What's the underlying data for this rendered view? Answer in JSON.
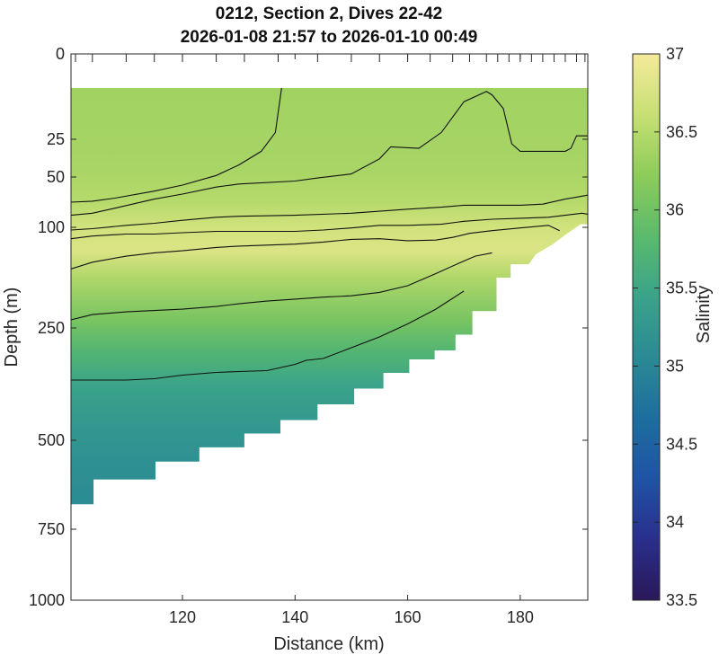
{
  "chart_data": {
    "type": "heatmap",
    "title": "0212, Section 2, Dives 22-42",
    "subtitle": "2026-01-08 21:57 to 2026-01-10 00:49",
    "xlabel": "Distance (km)",
    "ylabel": "Depth (m)",
    "xlim": [
      100.2,
      192
    ],
    "ylim_depth": [
      0,
      1000
    ],
    "depth_scale": "stretched (upper ocean expanded)",
    "x_ticks": [
      "120",
      "140",
      "160",
      "180"
    ],
    "x_tick_values": [
      120,
      140,
      160,
      180
    ],
    "y_ticks": [
      "0",
      "25",
      "50",
      "100",
      "250",
      "500",
      "750",
      "1000"
    ],
    "y_tick_values": [
      0,
      25,
      50,
      100,
      250,
      500,
      750,
      1000
    ],
    "colorbar": {
      "label": "Salinity",
      "min": 33.5,
      "max": 37,
      "ticks": [
        "33.5",
        "34",
        "34.5",
        "35",
        "35.5",
        "36",
        "36.5",
        "37"
      ],
      "tick_values": [
        33.5,
        34,
        34.5,
        35,
        35.5,
        36,
        36.5,
        37
      ]
    },
    "data_top_depth": 10,
    "bottom_boundary": [
      {
        "x": 100.2,
        "depth": 680
      },
      {
        "x": 104.2,
        "depth": 680
      },
      {
        "x": 104.2,
        "depth": 610
      },
      {
        "x": 115.2,
        "depth": 610
      },
      {
        "x": 115.2,
        "depth": 560
      },
      {
        "x": 123.0,
        "depth": 560
      },
      {
        "x": 123.0,
        "depth": 520
      },
      {
        "x": 131.0,
        "depth": 520
      },
      {
        "x": 131.0,
        "depth": 485
      },
      {
        "x": 137.4,
        "depth": 485
      },
      {
        "x": 137.4,
        "depth": 455
      },
      {
        "x": 144.0,
        "depth": 455
      },
      {
        "x": 144.0,
        "depth": 420
      },
      {
        "x": 150.5,
        "depth": 420
      },
      {
        "x": 150.5,
        "depth": 385
      },
      {
        "x": 155.7,
        "depth": 385
      },
      {
        "x": 155.7,
        "depth": 350
      },
      {
        "x": 160.3,
        "depth": 350
      },
      {
        "x": 160.3,
        "depth": 320
      },
      {
        "x": 164.8,
        "depth": 320
      },
      {
        "x": 164.8,
        "depth": 300
      },
      {
        "x": 168.5,
        "depth": 300
      },
      {
        "x": 168.5,
        "depth": 265
      },
      {
        "x": 171.5,
        "depth": 265
      },
      {
        "x": 171.5,
        "depth": 225
      },
      {
        "x": 175.8,
        "depth": 225
      },
      {
        "x": 175.8,
        "depth": 175
      },
      {
        "x": 178.3,
        "depth": 175
      },
      {
        "x": 178.3,
        "depth": 155
      },
      {
        "x": 181.5,
        "depth": 155
      },
      {
        "x": 182.8,
        "depth": 140
      },
      {
        "x": 185.8,
        "depth": 125
      },
      {
        "x": 188.2,
        "depth": 110
      },
      {
        "x": 190.7,
        "depth": 97
      },
      {
        "x": 192.0,
        "depth": 97
      }
    ],
    "salinity_profile": [
      {
        "depth": 10,
        "salinity": 36.35
      },
      {
        "depth": 45,
        "salinity": 36.4
      },
      {
        "depth": 75,
        "salinity": 36.5
      },
      {
        "depth": 100,
        "salinity": 36.7
      },
      {
        "depth": 135,
        "salinity": 36.78
      },
      {
        "depth": 175,
        "salinity": 36.45
      },
      {
        "depth": 240,
        "salinity": 36.05
      },
      {
        "depth": 300,
        "salinity": 35.75
      },
      {
        "depth": 380,
        "salinity": 35.45
      },
      {
        "depth": 450,
        "salinity": 35.3
      },
      {
        "depth": 560,
        "salinity": 35.15
      },
      {
        "depth": 700,
        "salinity": 35.05
      }
    ],
    "contour_lines": [
      [
        {
          "x": 137.6,
          "depth": 10
        },
        {
          "x": 136.5,
          "depth": 23
        },
        {
          "x": 134.0,
          "depth": 33
        },
        {
          "x": 130.0,
          "depth": 42
        },
        {
          "x": 126.0,
          "depth": 49
        },
        {
          "x": 120.0,
          "depth": 58
        },
        {
          "x": 115.0,
          "depth": 64
        },
        {
          "x": 108.0,
          "depth": 71
        },
        {
          "x": 104.0,
          "depth": 74
        },
        {
          "x": 100.2,
          "depth": 75
        }
      ],
      [
        {
          "x": 100.2,
          "depth": 88
        },
        {
          "x": 104.0,
          "depth": 86
        },
        {
          "x": 108.0,
          "depth": 81
        },
        {
          "x": 115.0,
          "depth": 72
        },
        {
          "x": 120.0,
          "depth": 67
        },
        {
          "x": 126.0,
          "depth": 60
        },
        {
          "x": 130.0,
          "depth": 57
        },
        {
          "x": 140.0,
          "depth": 54
        },
        {
          "x": 144.0,
          "depth": 51
        },
        {
          "x": 150.0,
          "depth": 48
        },
        {
          "x": 155.0,
          "depth": 38
        },
        {
          "x": 157.0,
          "depth": 30
        },
        {
          "x": 162.0,
          "depth": 31
        },
        {
          "x": 166.0,
          "depth": 23
        },
        {
          "x": 170.0,
          "depth": 14
        },
        {
          "x": 174.0,
          "depth": 11
        },
        {
          "x": 175.0,
          "depth": 12
        },
        {
          "x": 177.0,
          "depth": 16
        },
        {
          "x": 178.5,
          "depth": 28
        },
        {
          "x": 180.0,
          "depth": 33
        },
        {
          "x": 184.0,
          "depth": 33
        },
        {
          "x": 188.0,
          "depth": 33
        },
        {
          "x": 189.0,
          "depth": 31
        },
        {
          "x": 190.0,
          "depth": 24
        },
        {
          "x": 192.0,
          "depth": 24
        }
      ],
      [
        {
          "x": 100.2,
          "depth": 104
        },
        {
          "x": 104.0,
          "depth": 102
        },
        {
          "x": 110.0,
          "depth": 98
        },
        {
          "x": 115.0,
          "depth": 96
        },
        {
          "x": 120.0,
          "depth": 93
        },
        {
          "x": 126.0,
          "depth": 90
        },
        {
          "x": 130.0,
          "depth": 89
        },
        {
          "x": 140.0,
          "depth": 88
        },
        {
          "x": 150.0,
          "depth": 86
        },
        {
          "x": 155.0,
          "depth": 84
        },
        {
          "x": 160.0,
          "depth": 82
        },
        {
          "x": 166.0,
          "depth": 80
        },
        {
          "x": 170.0,
          "depth": 78
        },
        {
          "x": 175.0,
          "depth": 78
        },
        {
          "x": 180.0,
          "depth": 78
        },
        {
          "x": 184.0,
          "depth": 77
        },
        {
          "x": 188.0,
          "depth": 72
        },
        {
          "x": 192.0,
          "depth": 68
        }
      ],
      [
        {
          "x": 100.2,
          "depth": 117
        },
        {
          "x": 104.0,
          "depth": 113
        },
        {
          "x": 110.0,
          "depth": 110
        },
        {
          "x": 115.0,
          "depth": 110
        },
        {
          "x": 120.0,
          "depth": 108
        },
        {
          "x": 126.0,
          "depth": 106
        },
        {
          "x": 130.0,
          "depth": 106
        },
        {
          "x": 140.0,
          "depth": 106
        },
        {
          "x": 145.0,
          "depth": 104
        },
        {
          "x": 150.0,
          "depth": 101
        },
        {
          "x": 155.0,
          "depth": 98
        },
        {
          "x": 160.0,
          "depth": 98
        },
        {
          "x": 166.0,
          "depth": 97
        },
        {
          "x": 170.0,
          "depth": 94
        },
        {
          "x": 175.0,
          "depth": 92
        },
        {
          "x": 180.0,
          "depth": 91
        },
        {
          "x": 185.0,
          "depth": 90
        },
        {
          "x": 188.0,
          "depth": 88
        },
        {
          "x": 191.0,
          "depth": 86
        },
        {
          "x": 192.0,
          "depth": 87
        }
      ],
      [
        {
          "x": 100.2,
          "depth": 162
        },
        {
          "x": 104.0,
          "depth": 152
        },
        {
          "x": 110.0,
          "depth": 143
        },
        {
          "x": 115.0,
          "depth": 138
        },
        {
          "x": 120.0,
          "depth": 135
        },
        {
          "x": 126.0,
          "depth": 130
        },
        {
          "x": 130.0,
          "depth": 128
        },
        {
          "x": 140.0,
          "depth": 125
        },
        {
          "x": 145.0,
          "depth": 122
        },
        {
          "x": 150.0,
          "depth": 118
        },
        {
          "x": 155.0,
          "depth": 117
        },
        {
          "x": 160.0,
          "depth": 120
        },
        {
          "x": 165.0,
          "depth": 119
        },
        {
          "x": 168.0,
          "depth": 115
        },
        {
          "x": 171.0,
          "depth": 109
        },
        {
          "x": 175.0,
          "depth": 105
        },
        {
          "x": 180.0,
          "depth": 101
        },
        {
          "x": 185.0,
          "depth": 98
        },
        {
          "x": 187.0,
          "depth": 105
        }
      ],
      [
        {
          "x": 100.2,
          "depth": 238
        },
        {
          "x": 104.0,
          "depth": 230
        },
        {
          "x": 110.0,
          "depth": 226
        },
        {
          "x": 115.0,
          "depth": 224
        },
        {
          "x": 120.0,
          "depth": 222
        },
        {
          "x": 126.0,
          "depth": 218
        },
        {
          "x": 130.0,
          "depth": 214
        },
        {
          "x": 135.0,
          "depth": 210
        },
        {
          "x": 140.0,
          "depth": 207
        },
        {
          "x": 145.0,
          "depth": 204
        },
        {
          "x": 150.0,
          "depth": 202
        },
        {
          "x": 155.0,
          "depth": 197
        },
        {
          "x": 160.0,
          "depth": 187
        },
        {
          "x": 165.0,
          "depth": 169
        },
        {
          "x": 169.0,
          "depth": 154
        },
        {
          "x": 172.0,
          "depth": 143
        },
        {
          "x": 175.0,
          "depth": 138
        }
      ],
      [
        {
          "x": 100.2,
          "depth": 366
        },
        {
          "x": 104.0,
          "depth": 366
        },
        {
          "x": 110.0,
          "depth": 366
        },
        {
          "x": 115.0,
          "depth": 363
        },
        {
          "x": 120.0,
          "depth": 355
        },
        {
          "x": 126.0,
          "depth": 349
        },
        {
          "x": 130.0,
          "depth": 347
        },
        {
          "x": 135.0,
          "depth": 345
        },
        {
          "x": 140.0,
          "depth": 331
        },
        {
          "x": 142.0,
          "depth": 322
        },
        {
          "x": 145.0,
          "depth": 318
        },
        {
          "x": 150.0,
          "depth": 294
        },
        {
          "x": 155.0,
          "depth": 270
        },
        {
          "x": 160.0,
          "depth": 244
        },
        {
          "x": 165.0,
          "depth": 222
        },
        {
          "x": 170.0,
          "depth": 195
        }
      ]
    ]
  },
  "colors": {
    "cmap": [
      "#2a1859",
      "#2a2f8c",
      "#1f53a6",
      "#1d6e9e",
      "#2b8a94",
      "#3aa38a",
      "#5bba6c",
      "#8dcc5a",
      "#c7df73",
      "#f4ea9c"
    ],
    "contour": "#111111",
    "axis": "#262626",
    "background": "#ffffff"
  }
}
